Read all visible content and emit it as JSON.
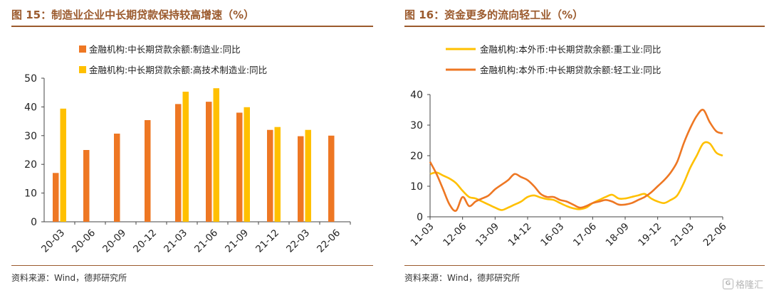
{
  "watermark": "格隆汇",
  "chart_data": [
    {
      "type": "bar",
      "title": "图 15：制造业企业中长期贷款保持较高增速（%）",
      "source": "资料来源：Wind，德邦研究所",
      "categories": [
        "20-03",
        "20-06",
        "20-09",
        "20-12",
        "21-03",
        "21-06",
        "21-09",
        "21-12",
        "22-03",
        "22-06"
      ],
      "series": [
        {
          "name": "金融机构:中长期贷款余额:制造业:同比",
          "color": "#ee7723",
          "values": [
            17,
            25,
            30.7,
            35.4,
            41,
            41.8,
            38,
            32,
            29.8,
            30
          ]
        },
        {
          "name": "金融机构:中长期贷款余额:高技术制造业:同比",
          "color": "#ffc000",
          "values": [
            39.4,
            null,
            null,
            null,
            45.3,
            46.5,
            39.9,
            33,
            32,
            null
          ]
        }
      ],
      "ylim": [
        0,
        50
      ],
      "yticks": [
        0,
        10,
        20,
        30,
        40,
        50
      ],
      "legend": "top-center",
      "grid": false
    },
    {
      "type": "line",
      "title": "图 16：资金更多的流向轻工业（%）",
      "source": "资料来源：Wind，德邦研究所",
      "xticks": [
        "11-03",
        "12-06",
        "13-09",
        "14-12",
        "16-03",
        "17-06",
        "18-09",
        "19-12",
        "21-03",
        "22-06"
      ],
      "x_start": "2011-03",
      "x_end": "2022-06",
      "ylim": [
        0,
        40
      ],
      "yticks": [
        0,
        10,
        20,
        30,
        40
      ],
      "legend": "top-center",
      "grid": false,
      "series": [
        {
          "name": "金融机构:本外币:中长期贷款余额:重工业:同比",
          "color": "#ffc000",
          "points": [
            [
              "2011-03",
              14
            ],
            [
              "2011-06",
              14.5
            ],
            [
              "2011-09",
              13.5
            ],
            [
              "2011-12",
              12.5
            ],
            [
              "2012-03",
              11
            ],
            [
              "2012-06",
              8.5
            ],
            [
              "2012-09",
              6.5
            ],
            [
              "2012-12",
              6
            ],
            [
              "2013-03",
              5
            ],
            [
              "2013-06",
              4
            ],
            [
              "2013-09",
              3
            ],
            [
              "2013-12",
              2.2
            ],
            [
              "2014-03",
              3
            ],
            [
              "2014-06",
              4
            ],
            [
              "2014-09",
              5
            ],
            [
              "2014-12",
              6.5
            ],
            [
              "2015-03",
              7
            ],
            [
              "2015-06",
              6.3
            ],
            [
              "2015-09",
              5.8
            ],
            [
              "2015-12",
              5.5
            ],
            [
              "2016-03",
              4.5
            ],
            [
              "2016-06",
              3.5
            ],
            [
              "2016-09",
              2.8
            ],
            [
              "2016-12",
              2.5
            ],
            [
              "2017-03",
              3
            ],
            [
              "2017-06",
              4.5
            ],
            [
              "2017-09",
              5.5
            ],
            [
              "2017-12",
              6.5
            ],
            [
              "2018-03",
              7.2
            ],
            [
              "2018-06",
              6
            ],
            [
              "2018-09",
              6
            ],
            [
              "2018-12",
              6.5
            ],
            [
              "2019-03",
              7
            ],
            [
              "2019-06",
              7.5
            ],
            [
              "2019-09",
              6
            ],
            [
              "2019-12",
              5
            ],
            [
              "2020-03",
              4.5
            ],
            [
              "2020-06",
              5.5
            ],
            [
              "2020-09",
              7
            ],
            [
              "2020-12",
              11
            ],
            [
              "2021-03",
              16
            ],
            [
              "2021-06",
              20
            ],
            [
              "2021-09",
              24
            ],
            [
              "2021-12",
              24
            ],
            [
              "2022-03",
              21
            ],
            [
              "2022-06",
              20
            ]
          ]
        },
        {
          "name": "金融机构:本外币:中长期贷款余额:轻工业:同比",
          "color": "#ee7723",
          "points": [
            [
              "2011-03",
              18
            ],
            [
              "2011-06",
              14
            ],
            [
              "2011-09",
              9
            ],
            [
              "2011-12",
              4
            ],
            [
              "2012-03",
              2
            ],
            [
              "2012-06",
              6.5
            ],
            [
              "2012-09",
              3.5
            ],
            [
              "2012-12",
              5
            ],
            [
              "2013-03",
              6
            ],
            [
              "2013-06",
              7
            ],
            [
              "2013-09",
              9
            ],
            [
              "2013-12",
              10.5
            ],
            [
              "2014-03",
              12
            ],
            [
              "2014-06",
              14
            ],
            [
              "2014-09",
              13
            ],
            [
              "2014-12",
              12
            ],
            [
              "2015-03",
              10
            ],
            [
              "2015-06",
              7.5
            ],
            [
              "2015-09",
              6.5
            ],
            [
              "2015-12",
              6.5
            ],
            [
              "2016-03",
              5.5
            ],
            [
              "2016-06",
              5
            ],
            [
              "2016-09",
              4
            ],
            [
              "2016-12",
              3
            ],
            [
              "2017-03",
              3.5
            ],
            [
              "2017-06",
              4.5
            ],
            [
              "2017-09",
              5
            ],
            [
              "2017-12",
              5.5
            ],
            [
              "2018-03",
              5
            ],
            [
              "2018-06",
              4
            ],
            [
              "2018-09",
              4
            ],
            [
              "2018-12",
              4.5
            ],
            [
              "2019-03",
              5.5
            ],
            [
              "2019-06",
              6.5
            ],
            [
              "2019-09",
              8
            ],
            [
              "2019-12",
              10
            ],
            [
              "2020-03",
              12
            ],
            [
              "2020-06",
              14.5
            ],
            [
              "2020-09",
              18
            ],
            [
              "2020-12",
              24
            ],
            [
              "2021-03",
              29
            ],
            [
              "2021-06",
              33
            ],
            [
              "2021-09",
              35
            ],
            [
              "2021-12",
              31
            ],
            [
              "2022-03",
              28
            ],
            [
              "2022-06",
              27.3
            ]
          ]
        }
      ]
    }
  ]
}
